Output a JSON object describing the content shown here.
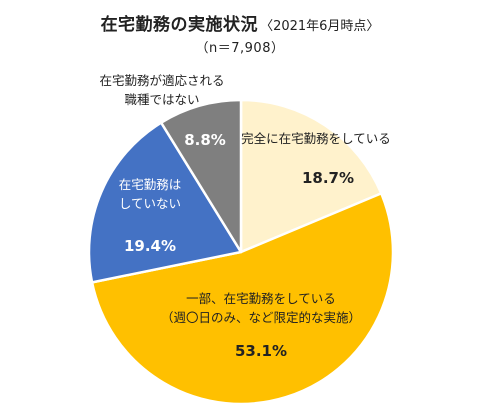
{
  "chart_data": {
    "type": "pie",
    "title": "在宅勤務の実施状況",
    "title_note": "〈2021年6月時点〉",
    "subtitle": "（n＝7,908）",
    "slices": [
      {
        "label_lines": [
          "完全に在宅勤務をしている"
        ],
        "value": 18.7,
        "value_label": "18.7%",
        "color": "#FFF2CC"
      },
      {
        "label_lines": [
          "一部、在宅勤務をしている",
          "（週〇日のみ、など限定的な実施）"
        ],
        "value": 53.1,
        "value_label": "53.1%",
        "color": "#FFC000"
      },
      {
        "label_lines": [
          "在宅勤務は",
          "していない"
        ],
        "value": 19.4,
        "value_label": "19.4%",
        "color": "#4472C4"
      },
      {
        "label_lines": [
          "在宅勤務が適応される",
          "職種ではない"
        ],
        "value": 8.8,
        "value_label": "8.8%",
        "color": "#7F7F7F"
      }
    ]
  }
}
